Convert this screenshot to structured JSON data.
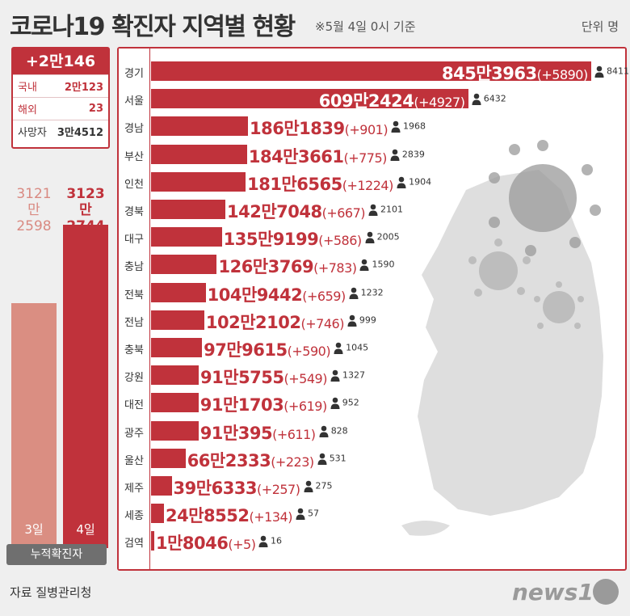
{
  "header": {
    "title": "코로나19 확진자 지역별 현황",
    "subtitle": "※5월 4일 0시 기준",
    "unit": "단위 명"
  },
  "summary": {
    "total_new": "+2만146",
    "rows": [
      {
        "label": "국내",
        "value": "2만123"
      },
      {
        "label": "해외",
        "value": "23"
      },
      {
        "label": "사망자",
        "value": "3만4512"
      }
    ]
  },
  "cumulative": {
    "prev_label_1": "3121만",
    "prev_label_2": "2598",
    "cur_label_1": "3123만",
    "cur_label_2": "2744",
    "prev_day": "3일",
    "cur_day": "4일",
    "footer": "누적확진자"
  },
  "chart_data": {
    "type": "bar",
    "orientation": "horizontal",
    "categories": [
      "경기",
      "서울",
      "경남",
      "부산",
      "인천",
      "경북",
      "대구",
      "충남",
      "전북",
      "전남",
      "충북",
      "강원",
      "대전",
      "광주",
      "울산",
      "제주",
      "세종",
      "검역"
    ],
    "value_labels": [
      "845만3963",
      "609만2424",
      "186만1839",
      "184만3661",
      "181만6565",
      "142만7048",
      "135만9199",
      "126만3769",
      "104만9442",
      "102만2102",
      "97만9615",
      "91만5755",
      "91만1703",
      "91만395",
      "66만2333",
      "39만6333",
      "24만8552",
      "1만8046"
    ],
    "values": [
      8453963,
      6092424,
      1861839,
      1843661,
      1816565,
      1427048,
      1359199,
      1263769,
      1049442,
      1022102,
      979615,
      915755,
      911703,
      910395,
      662333,
      396333,
      248552,
      18046
    ],
    "increase_labels": [
      "(+5890)",
      "(+4927)",
      "(+901)",
      "(+775)",
      "(+1224)",
      "(+667)",
      "(+586)",
      "(+783)",
      "(+659)",
      "(+746)",
      "(+590)",
      "(+549)",
      "(+619)",
      "(+611)",
      "(+223)",
      "(+257)",
      "(+134)",
      "(+5)"
    ],
    "deaths": [
      "8411",
      "6432",
      "1968",
      "2839",
      "1904",
      "2101",
      "2005",
      "1590",
      "1232",
      "999",
      "1045",
      "1327",
      "952",
      "828",
      "531",
      "275",
      "57",
      "16"
    ],
    "cumulative_totals": [
      {
        "day": "3일",
        "value": 31212598
      },
      {
        "day": "4일",
        "value": 31232744
      }
    ],
    "colors": {
      "bar": "#c0323b",
      "prev_bar": "#da8e82",
      "map": "#dedede"
    }
  },
  "footer": {
    "source": "자료  질병관리청",
    "logo": "news1"
  }
}
